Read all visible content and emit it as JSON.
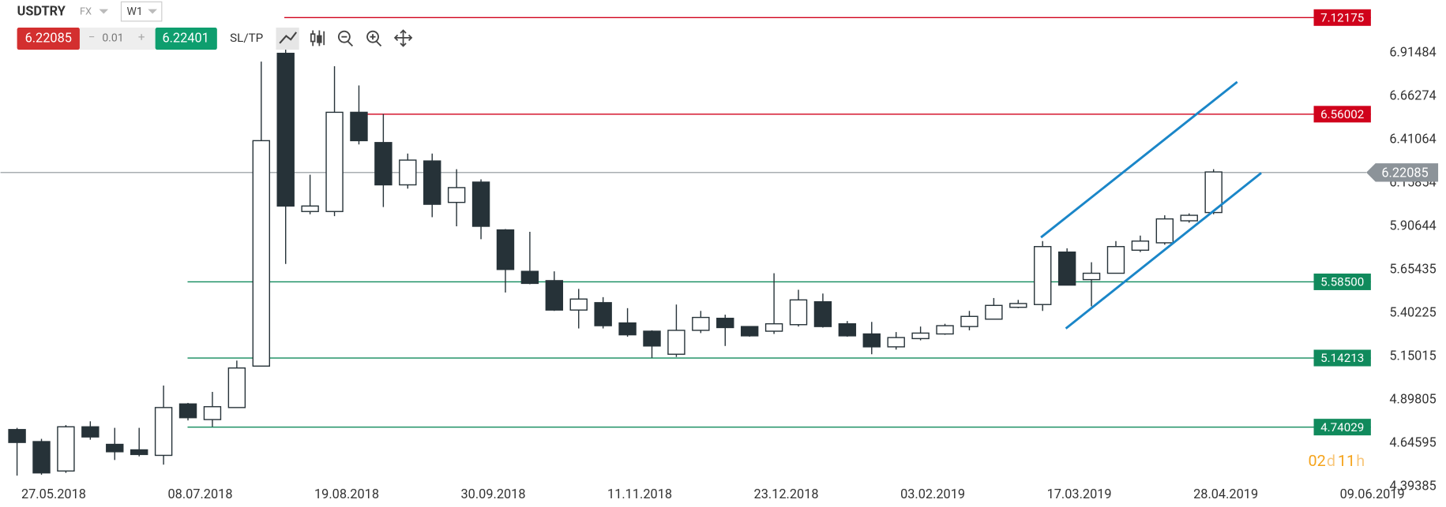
{
  "header": {
    "symbol": "USDTRY",
    "market": "FX",
    "timeframe": "W1",
    "sell": "6.22085",
    "step": "0.01",
    "buy": "6.22401",
    "sltp": "SL/TP",
    "timer": [
      "02",
      "d",
      "11",
      "h"
    ]
  },
  "chart_data": {
    "type": "candlestick",
    "open": [
      4.726,
      4.656,
      4.485,
      4.742,
      4.64,
      4.608,
      4.576,
      4.875,
      4.784,
      4.854,
      5.095,
      6.914,
      5.994,
      5.994,
      6.571,
      6.395,
      6.149,
      6.288,
      6.047,
      6.165,
      5.887,
      5.646,
      5.592,
      5.421,
      5.464,
      5.346,
      5.298,
      5.164,
      5.303,
      5.373,
      5.325,
      5.298,
      5.336,
      5.469,
      5.341,
      5.282,
      5.207,
      5.255,
      5.282,
      5.325,
      5.368,
      5.437,
      5.453,
      5.758,
      5.598,
      5.635,
      5.769,
      5.812,
      5.94,
      5.988
    ],
    "high": [
      4.736,
      4.672,
      4.752,
      4.774,
      4.736,
      4.736,
      4.982,
      4.881,
      4.945,
      5.127,
      6.866,
      6.983,
      6.208,
      6.839,
      6.727,
      6.561,
      6.331,
      6.331,
      6.24,
      6.181,
      5.892,
      5.876,
      5.646,
      5.544,
      5.496,
      5.432,
      5.303,
      5.453,
      5.416,
      5.394,
      5.325,
      5.635,
      5.539,
      5.517,
      5.357,
      5.352,
      5.293,
      5.325,
      5.341,
      5.416,
      5.491,
      5.48,
      5.822,
      5.78,
      5.699,
      5.822,
      5.854,
      5.972,
      5.983,
      6.24
    ],
    "low": [
      4.458,
      4.463,
      4.474,
      4.667,
      4.549,
      4.57,
      4.522,
      4.779,
      4.742,
      4.854,
      5.095,
      5.689,
      5.978,
      5.967,
      6.384,
      6.02,
      6.127,
      5.961,
      5.908,
      5.833,
      5.523,
      5.571,
      5.416,
      5.314,
      5.314,
      5.266,
      5.143,
      5.148,
      5.287,
      5.212,
      5.266,
      5.282,
      5.325,
      5.319,
      5.266,
      5.164,
      5.191,
      5.245,
      5.277,
      5.303,
      5.368,
      5.432,
      5.416,
      5.566,
      5.443,
      5.635,
      5.758,
      5.801,
      5.929,
      5.978
    ],
    "close": [
      4.651,
      4.474,
      4.742,
      4.683,
      4.597,
      4.581,
      4.854,
      4.795,
      4.859,
      5.084,
      6.406,
      6.026,
      6.026,
      6.571,
      6.406,
      6.149,
      6.293,
      6.036,
      6.133,
      5.908,
      5.657,
      5.576,
      5.421,
      5.485,
      5.33,
      5.277,
      5.212,
      5.303,
      5.378,
      5.319,
      5.271,
      5.341,
      5.48,
      5.325,
      5.271,
      5.207,
      5.261,
      5.287,
      5.33,
      5.384,
      5.448,
      5.459,
      5.79,
      5.566,
      5.635,
      5.79,
      5.822,
      5.951,
      5.972,
      6.224
    ],
    "up_color": "#ffffff",
    "down_color": "#263238",
    "xlim": [
      -0.679,
      58.5
    ],
    "xticks": [
      {
        "value": 1.5,
        "label": "27.05.2018"
      },
      {
        "value": 7.5,
        "label": "08.07.2018"
      },
      {
        "value": 13.5,
        "label": "19.08.2018"
      },
      {
        "value": 19.5,
        "label": "30.09.2018"
      },
      {
        "value": 25.5,
        "label": "11.11.2018"
      },
      {
        "value": 31.5,
        "label": "23.12.2018"
      },
      {
        "value": 37.5,
        "label": "03.02.2019"
      },
      {
        "value": 43.5,
        "label": "17.03.2019"
      },
      {
        "value": 49.5,
        "label": "28.04.2019"
      },
      {
        "value": 55.5,
        "label": "09.06.2019"
      }
    ],
    "ylim": [
      4.388,
      7.224
    ],
    "yticks": [
      4.39385,
      4.64595,
      4.89805,
      5.15015,
      5.40225,
      5.65435,
      5.90644,
      6.15854,
      6.41064,
      6.66274,
      6.91484
    ],
    "price_line": 6.22085,
    "levels": [
      {
        "value": 7.12175,
        "color": "#d0021b"
      },
      {
        "value": 6.56002,
        "color": "#d0021b"
      },
      {
        "value": 5.585,
        "label": "5.58500",
        "color": "#108a5c"
      },
      {
        "value": 5.14213,
        "color": "#108a5c"
      },
      {
        "value": 4.74029,
        "color": "#108a5c"
      }
    ]
  }
}
